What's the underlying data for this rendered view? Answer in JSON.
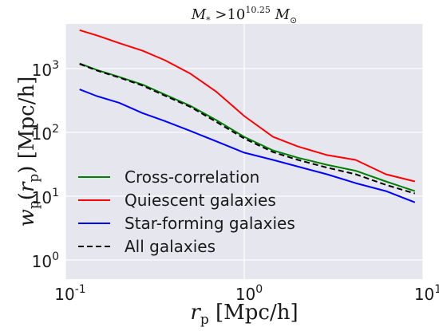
{
  "chart_data": {
    "type": "line",
    "title": "M* >10^10.25 M⊙",
    "title_parts": {
      "base": "M",
      "sub": "*",
      "gt": " >10",
      "exp": "10.25",
      "unit": " M",
      "unit_sub": "⊙"
    },
    "xlabel": "r_p  [Mpc/h]",
    "xlabel_parts": {
      "sym": "r",
      "sub": "p",
      "unit": "  [Mpc/h]"
    },
    "ylabel": "w_p(r_p)  [Mpc/h]",
    "ylabel_parts": {
      "sym": "w",
      "sub": "p",
      "arg_open": "(",
      "arg": "r",
      "arg_sub": "p",
      "arg_close": ")",
      "unit": "  [Mpc/h]"
    },
    "xscale": "log",
    "yscale": "log",
    "xlim": [
      0.1,
      10
    ],
    "ylim": [
      0.5,
      5000
    ],
    "x_ticks": [
      {
        "value": 0.1,
        "base": "10",
        "exp": "-1"
      },
      {
        "value": 1,
        "base": "10",
        "exp": "0"
      },
      {
        "value": 10,
        "base": "10",
        "exp": "1"
      }
    ],
    "y_ticks": [
      {
        "value": 1,
        "base": "10",
        "exp": "0"
      },
      {
        "value": 10,
        "base": "10",
        "exp": "1"
      },
      {
        "value": 100,
        "base": "10",
        "exp": "2"
      },
      {
        "value": 1000,
        "base": "10",
        "exp": "3"
      }
    ],
    "grid": true,
    "legend_position": "lower-left",
    "series": [
      {
        "name": "Cross-correlation",
        "color": "#008000",
        "style": "solid",
        "x": [
          0.12,
          0.15,
          0.2,
          0.27,
          0.36,
          0.5,
          0.7,
          1.0,
          1.45,
          2.0,
          2.9,
          4.2,
          6.2,
          9.0
        ],
        "y": [
          1200,
          950,
          740,
          560,
          390,
          260,
          155,
          85,
          52,
          40,
          31,
          25,
          17,
          12
        ]
      },
      {
        "name": "Quiescent galaxies",
        "color": "#ff0000",
        "style": "solid",
        "x": [
          0.12,
          0.15,
          0.2,
          0.27,
          0.36,
          0.5,
          0.7,
          1.0,
          1.45,
          2.0,
          2.9,
          4.2,
          6.2,
          9.0
        ],
        "y": [
          4000,
          3300,
          2500,
          1900,
          1350,
          830,
          430,
          180,
          85,
          60,
          44,
          37,
          22,
          17
        ]
      },
      {
        "name": "Star-forming galaxies",
        "color": "#0000ff",
        "style": "solid",
        "x": [
          0.12,
          0.15,
          0.2,
          0.27,
          0.36,
          0.5,
          0.7,
          1.0,
          1.45,
          2.0,
          2.9,
          4.2,
          6.2,
          9.0
        ],
        "y": [
          470,
          370,
          290,
          200,
          150,
          105,
          72,
          48,
          37,
          29,
          22,
          16,
          12,
          8
        ]
      },
      {
        "name": "All galaxies",
        "color": "#000000",
        "style": "dashed",
        "x": [
          0.12,
          0.15,
          0.2,
          0.27,
          0.36,
          0.5,
          0.7,
          1.0,
          1.45,
          2.0,
          2.9,
          4.2,
          6.2,
          9.0
        ],
        "y": [
          1180,
          930,
          720,
          540,
          375,
          250,
          145,
          80,
          49,
          37,
          28,
          22,
          15,
          11
        ]
      }
    ]
  }
}
